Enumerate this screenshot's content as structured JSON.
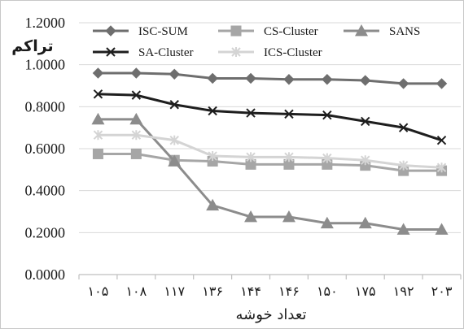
{
  "chart_data": {
    "type": "line",
    "categories": [
      "۱۰۵",
      "۱۰۸",
      "۱۱۷",
      "۱۳۶",
      "۱۴۴",
      "۱۴۶",
      "۱۵۰",
      "۱۷۵",
      "۱۹۲",
      "۲۰۳"
    ],
    "xlabel": "تعداد خوشه",
    "ylabel": "تراکم",
    "ylim": [
      0,
      1.2
    ],
    "yticks": [
      "0.0000",
      "0.2000",
      "0.4000",
      "0.6000",
      "0.8000",
      "1.0000",
      "1.2000"
    ],
    "grid": true,
    "legend": "top",
    "series": [
      {
        "name": "ISC-SUM",
        "marker": "diamond",
        "color": "#6e6e6e",
        "values": [
          0.96,
          0.96,
          0.955,
          0.935,
          0.935,
          0.93,
          0.93,
          0.925,
          0.91,
          0.91
        ]
      },
      {
        "name": "CS-Cluster",
        "marker": "square",
        "color": "#a6a6a6",
        "values": [
          0.575,
          0.575,
          0.545,
          0.54,
          0.525,
          0.525,
          0.525,
          0.52,
          0.495,
          0.495
        ]
      },
      {
        "name": "SANS",
        "marker": "triangle",
        "color": "#8c8c8c",
        "values": [
          0.74,
          0.74,
          0.54,
          0.33,
          0.275,
          0.275,
          0.245,
          0.245,
          0.215,
          0.215
        ]
      },
      {
        "name": "SA-Cluster",
        "marker": "x",
        "color": "#1e1e1e",
        "values": [
          0.86,
          0.855,
          0.81,
          0.78,
          0.77,
          0.765,
          0.76,
          0.73,
          0.7,
          0.64
        ]
      },
      {
        "name": "ICS-Cluster",
        "marker": "asterisk",
        "color": "#d4d4d4",
        "values": [
          0.665,
          0.665,
          0.64,
          0.565,
          0.56,
          0.56,
          0.555,
          0.545,
          0.52,
          0.51
        ]
      }
    ]
  }
}
